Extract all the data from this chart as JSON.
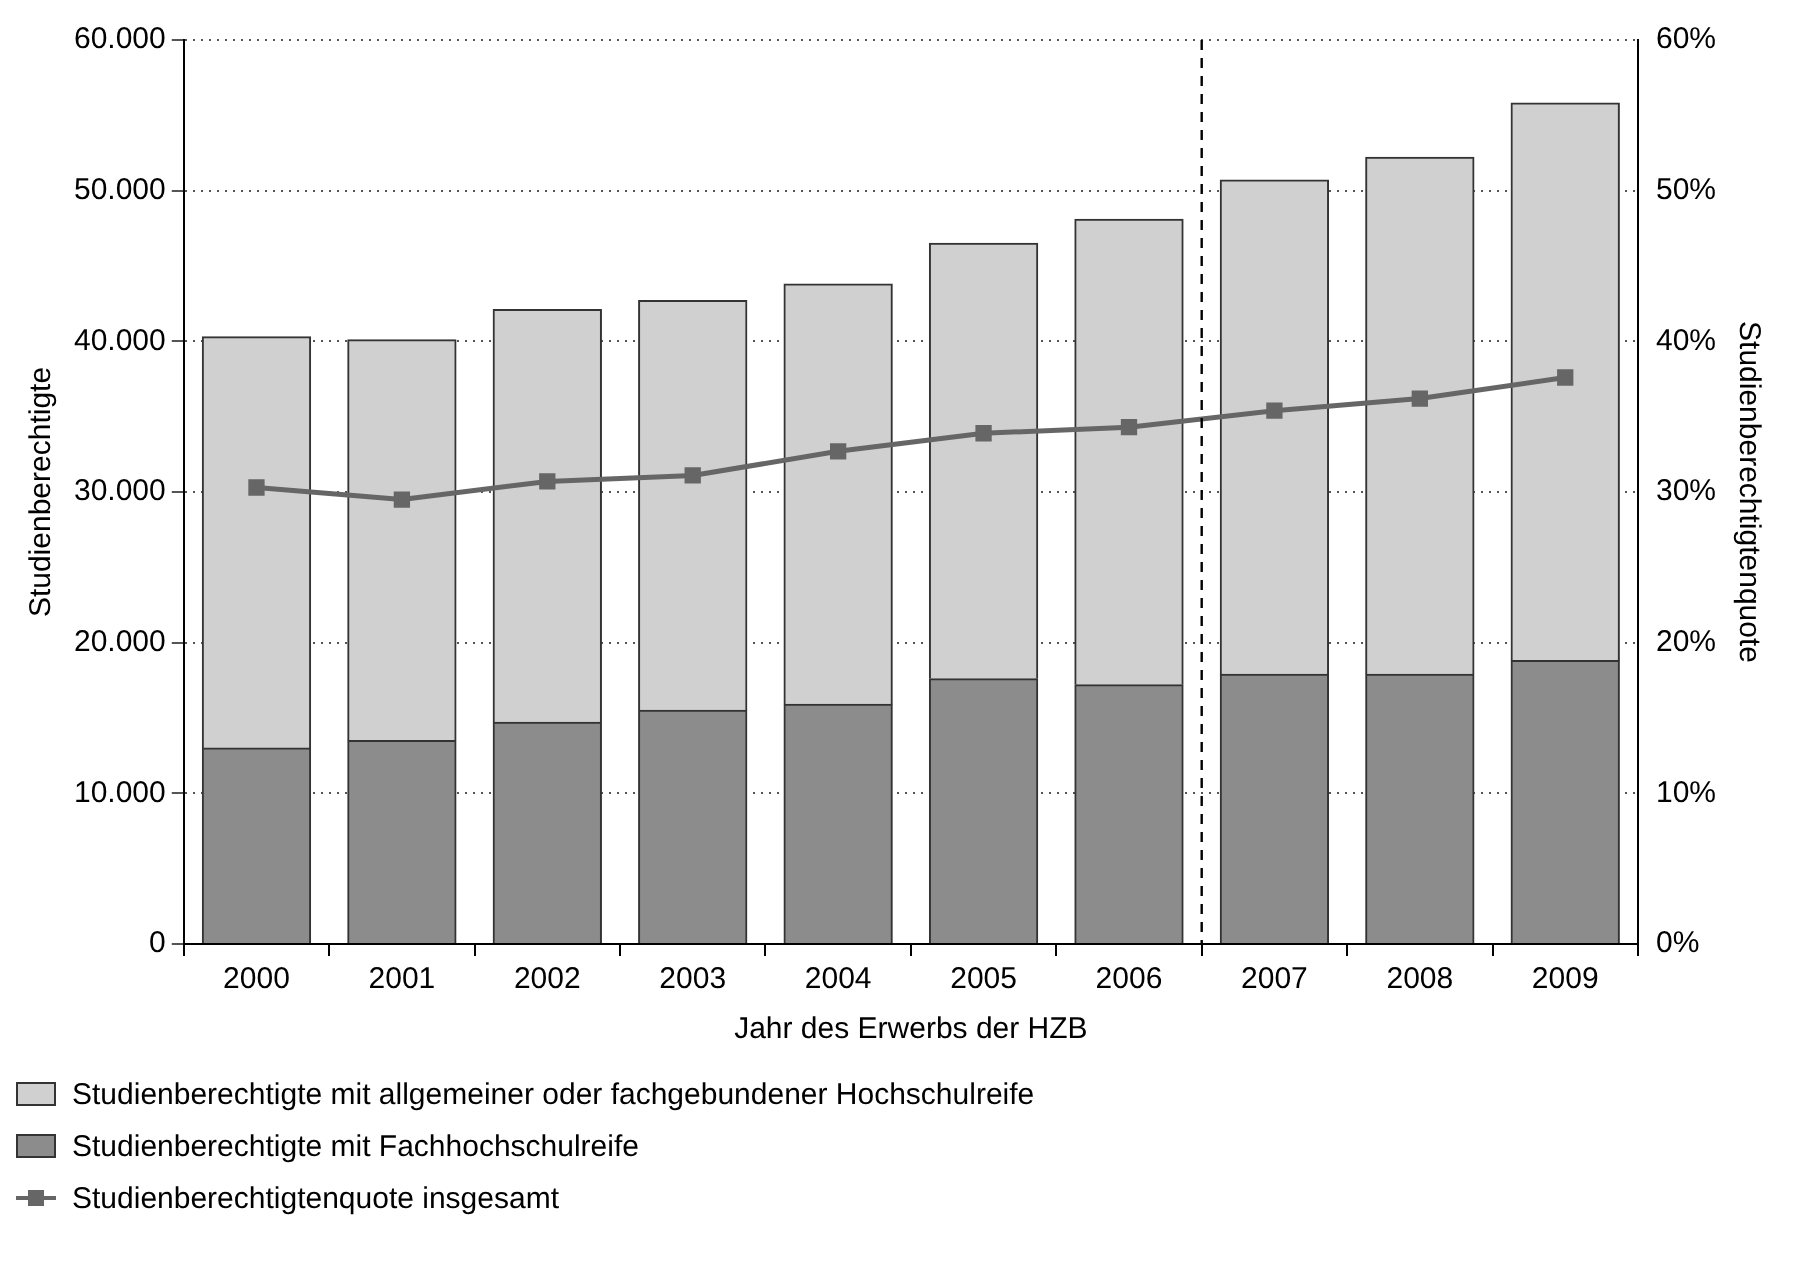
{
  "chart_data": {
    "type": "bar",
    "stacked": true,
    "x": [
      2000,
      2001,
      2002,
      2003,
      2004,
      2005,
      2006,
      2007,
      2008,
      2009
    ],
    "xlim": [
      1999.5,
      2009.5
    ],
    "xticks": [
      2000,
      2001,
      2002,
      2003,
      2004,
      2005,
      2006,
      2007,
      2008,
      2009
    ],
    "ref_lines": [
      {
        "axis": "x",
        "value": 2006.5,
        "color": "#000000",
        "line_style": "dashed"
      }
    ],
    "xlabel": "Jahr des Erwerbs der HZB",
    "ylabel": "Studienberechtigte",
    "y2label": "Studienberechtigtenquote",
    "series": [
      {
        "name": "Studienberechtigte mit Fachhochschulreife",
        "color": "#8c8c8c",
        "values": [
          13000,
          13500,
          14700,
          15500,
          15900,
          17600,
          17200,
          17900,
          17900,
          18800
        ]
      },
      {
        "name": "Studienberechtigte mit allgemeiner oder fachgebundener Hochschulreife",
        "color": "#d0d0d0",
        "values": [
          27300,
          26600,
          27400,
          27200,
          27900,
          28900,
          30900,
          32800,
          34300,
          37000
        ]
      },
      {
        "name": "Studienberechtigtenquote insgesamt",
        "type": "line",
        "axis": "y2",
        "color": "#666666",
        "marker": "square",
        "values": [
          30.3,
          29.5,
          30.7,
          31.1,
          32.7,
          33.9,
          34.3,
          35.4,
          36.2,
          37.6
        ]
      }
    ],
    "ylim": [
      0,
      60000
    ],
    "yticks": [
      {
        "value": 0,
        "label": "0"
      },
      {
        "value": 10000,
        "label": "10.000"
      },
      {
        "value": 20000,
        "label": "20.000"
      },
      {
        "value": 30000,
        "label": "30.000"
      },
      {
        "value": 40000,
        "label": "40.000"
      },
      {
        "value": 50000,
        "label": "50.000"
      },
      {
        "value": 60000,
        "label": "60.000"
      }
    ],
    "y2lim": [
      0,
      60
    ],
    "y2ticks": [
      {
        "value": 0,
        "label": "0%"
      },
      {
        "value": 10,
        "label": "10%"
      },
      {
        "value": 20,
        "label": "20%"
      },
      {
        "value": 30,
        "label": "30%"
      },
      {
        "value": 40,
        "label": "40%"
      },
      {
        "value": 50,
        "label": "50%"
      },
      {
        "value": 60,
        "label": "60%"
      }
    ],
    "grid": "y",
    "legend": "bottom"
  }
}
